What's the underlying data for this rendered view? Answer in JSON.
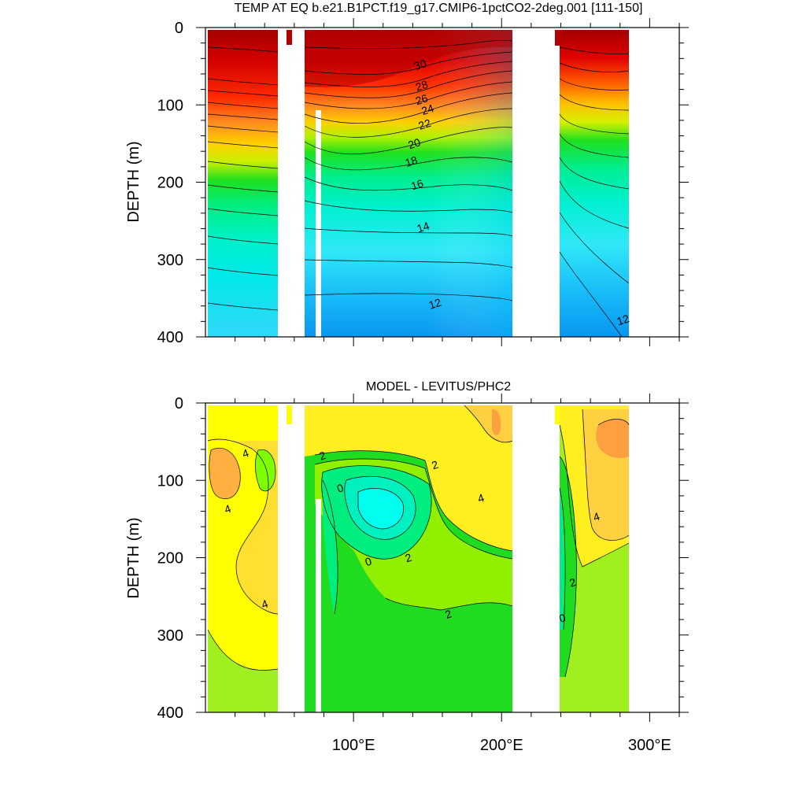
{
  "chart_data": [
    {
      "type": "heatmap",
      "subtype": "filled-contour",
      "title": "TEMP AT EQ b.e21.B1PCT.f19_g17.CMIP6-1pctCO2-2deg.001 [111-150]",
      "ylabel": "DEPTH (m)",
      "xlabel": "",
      "xlim": [
        0,
        320
      ],
      "ylim": [
        0,
        400
      ],
      "y_inverted": true,
      "yticks": [
        {
          "v": 0,
          "label": "0"
        },
        {
          "v": 100,
          "label": "100"
        },
        {
          "v": 200,
          "label": "200"
        },
        {
          "v": 300,
          "label": "300"
        },
        {
          "v": 400,
          "label": "400"
        }
      ],
      "xticks": [
        {
          "v": 100
        },
        {
          "v": 200
        },
        {
          "v": 300
        }
      ],
      "contour_interval": 1,
      "contour_labels": [
        {
          "text": "30",
          "x": 145,
          "y": 48
        },
        {
          "text": "28",
          "x": 146,
          "y": 75
        },
        {
          "text": "26",
          "x": 146,
          "y": 93
        },
        {
          "text": "24",
          "x": 150,
          "y": 106
        },
        {
          "text": "22",
          "x": 148,
          "y": 125
        },
        {
          "text": "20",
          "x": 141,
          "y": 150
        },
        {
          "text": "18",
          "x": 139,
          "y": 173
        },
        {
          "text": "16",
          "x": 143,
          "y": 203
        },
        {
          "text": "14",
          "x": 147,
          "y": 258
        },
        {
          "text": "12",
          "x": 155,
          "y": 357
        },
        {
          "text": "12",
          "x": 282,
          "y": 378
        }
      ]
    },
    {
      "type": "heatmap",
      "subtype": "filled-contour",
      "title": "MODEL - LEVITUS/PHC2",
      "ylabel": "DEPTH (m)",
      "xlabel": "",
      "xlim": [
        0,
        320
      ],
      "ylim": [
        0,
        400
      ],
      "y_inverted": true,
      "yticks": [
        {
          "v": 0,
          "label": "0"
        },
        {
          "v": 100,
          "label": "100"
        },
        {
          "v": 200,
          "label": "200"
        },
        {
          "v": 300,
          "label": "300"
        },
        {
          "v": 400,
          "label": "400"
        }
      ],
      "xticks": [
        {
          "v": 100,
          "label": "100°E"
        },
        {
          "v": 200,
          "label": "200°E"
        },
        {
          "v": 300,
          "label": "300°E"
        }
      ],
      "contour_interval": 1,
      "contour_labels": [
        {
          "text": "4",
          "x": 27,
          "y": 65
        },
        {
          "text": "4",
          "x": 15,
          "y": 137
        },
        {
          "text": "4",
          "x": 40,
          "y": 260
        },
        {
          "text": "2",
          "x": 79,
          "y": 68
        },
        {
          "text": "0",
          "x": 91,
          "y": 110
        },
        {
          "text": "2",
          "x": 155,
          "y": 80
        },
        {
          "text": "4",
          "x": 186,
          "y": 123
        },
        {
          "text": "0",
          "x": 110,
          "y": 205
        },
        {
          "text": "2",
          "x": 137,
          "y": 200
        },
        {
          "text": "2",
          "x": 164,
          "y": 273
        },
        {
          "text": "4",
          "x": 264,
          "y": 147
        },
        {
          "text": "2",
          "x": 248,
          "y": 232
        },
        {
          "text": "0",
          "x": 241,
          "y": 278
        }
      ]
    }
  ]
}
